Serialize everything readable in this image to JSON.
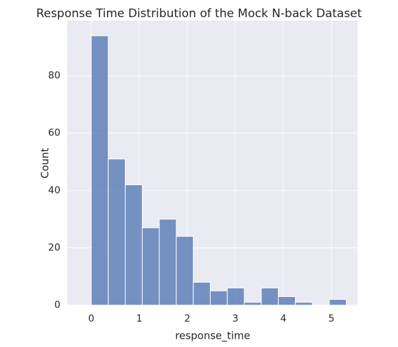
{
  "chart_data": {
    "type": "histogram",
    "title": "Response Time Distribution of the Mock N-back Dataset",
    "x_label": "response_time",
    "y_label": "Count",
    "bins": [
      0,
      0.354,
      0.708,
      1.062,
      1.416,
      1.77,
      2.124,
      2.478,
      2.832,
      3.186,
      3.54,
      3.894,
      4.248,
      4.602,
      4.956,
      5.31
    ],
    "values": [
      94,
      51,
      42,
      27,
      30,
      24,
      8,
      5,
      6,
      1,
      6,
      3,
      1,
      0,
      2
    ],
    "color": "#4c72b0",
    "xlim": [
      -0.5,
      5.543
    ],
    "xticks": [
      0,
      1,
      2,
      3,
      4,
      5
    ],
    "ylim": [
      0,
      99.3
    ],
    "yticks": [
      0,
      20,
      40,
      60,
      80
    ],
    "grid": true
  }
}
